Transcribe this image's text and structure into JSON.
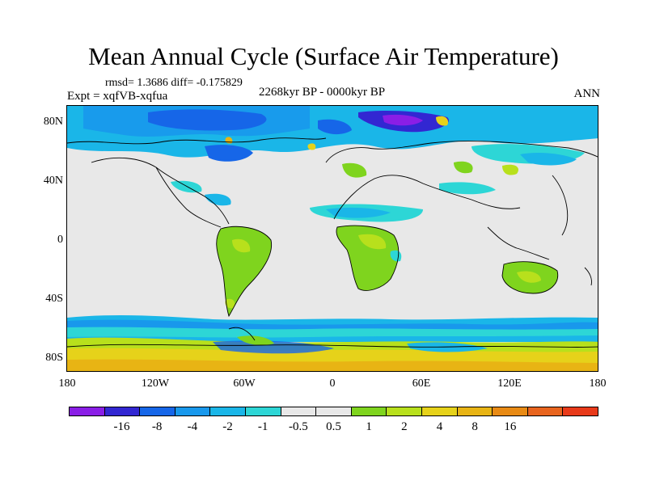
{
  "title": "Mean Annual Cycle (Surface Air Temperature)",
  "stats": {
    "rmsd": "rmsd= 1.3686 diff= -0.175829",
    "expt": "Expt = xqfVB-xqfua",
    "period": "2268kyr BP - 0000kyr BP",
    "season": "ANN"
  },
  "y_ticks": [
    "80N",
    "40N",
    "0",
    "40S",
    "80S"
  ],
  "x_ticks": [
    "180",
    "120W",
    "60W",
    "0",
    "60E",
    "120E",
    "180"
  ],
  "colorbar": {
    "colors": [
      "#8a1ee6",
      "#3227d2",
      "#1666e8",
      "#1898ec",
      "#1ab6e8",
      "#2dd6d6",
      "#e8e8e8",
      "#e8e8e8",
      "#7fd41e",
      "#b8e01c",
      "#e6d21a",
      "#e8b414",
      "#e88a14",
      "#e8641e",
      "#e83a1a"
    ],
    "labels": [
      "-16",
      "-8",
      "-4",
      "-2",
      "-1",
      "-0.5",
      "0.5",
      "1",
      "2",
      "4",
      "8",
      "16"
    ]
  }
}
